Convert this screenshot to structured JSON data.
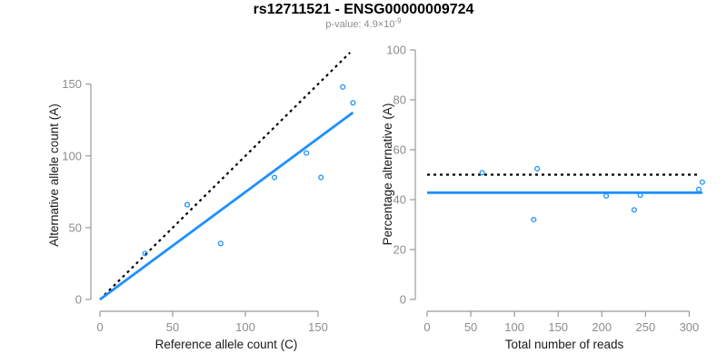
{
  "chart_data": {
    "title": "rs12711521 - ENSG00000009724",
    "subtitle": {
      "base": "p-value: 4.9×10",
      "exponent": "-9"
    },
    "colors": {
      "accent_blue": "#1E90FF",
      "identity_black": "#000000",
      "axis_gray": "#999999",
      "tick_label_gray": "#8c8c8c",
      "axis_title_dark": "#1a1a1a",
      "subtitle_gray": "#8c8c8c"
    },
    "panels": [
      {
        "type": "scatter",
        "xlabel": "Reference allele count (C)",
        "ylabel": "Alternative allele count (A)",
        "xticks": [
          0,
          50,
          100,
          150
        ],
        "yticks": [
          0,
          50,
          100,
          150
        ],
        "xlim": [
          0,
          175
        ],
        "ylim": [
          0,
          174
        ],
        "grid": false,
        "point_color": "#1E90FF",
        "points": [
          [
            31,
            32
          ],
          [
            60,
            66
          ],
          [
            83,
            39
          ],
          [
            120,
            85
          ],
          [
            142,
            102
          ],
          [
            152,
            85
          ],
          [
            167,
            148
          ],
          [
            174,
            137
          ]
        ],
        "lines": [
          {
            "name": "identity-line",
            "x1": 0,
            "y1": 0,
            "x2": 172,
            "y2": 172,
            "dashed": true,
            "color": "#000000",
            "width": 2.2
          },
          {
            "name": "regression-line",
            "x1": 0,
            "y1": 0,
            "x2": 174,
            "y2": 130.2,
            "dashed": false,
            "color": "#1E90FF",
            "width": 2.8
          }
        ]
      },
      {
        "type": "scatter",
        "xlabel": "Total number of reads",
        "ylabel": "Percentage alternative (A)",
        "xticks": [
          0,
          50,
          100,
          150,
          200,
          250,
          300
        ],
        "yticks": [
          0,
          20,
          40,
          60,
          80,
          100
        ],
        "xlim": [
          0,
          315
        ],
        "ylim": [
          0,
          100
        ],
        "grid": false,
        "point_color": "#1E90FF",
        "points": [
          [
            63,
            50.8
          ],
          [
            126,
            52.4
          ],
          [
            122,
            32
          ],
          [
            205,
            41.5
          ],
          [
            244,
            41.8
          ],
          [
            237,
            35.9
          ],
          [
            315,
            47
          ],
          [
            311,
            44.1
          ]
        ],
        "lines": [
          {
            "name": "expected-50pct-line",
            "x1": 0,
            "y1": 50,
            "x2": 311,
            "y2": 50,
            "dashed": true,
            "color": "#000000",
            "width": 2.2
          },
          {
            "name": "mean-percentage-line",
            "x1": 0,
            "y1": 42.8,
            "x2": 315,
            "y2": 42.8,
            "dashed": false,
            "color": "#1E90FF",
            "width": 2.8
          }
        ]
      }
    ]
  }
}
